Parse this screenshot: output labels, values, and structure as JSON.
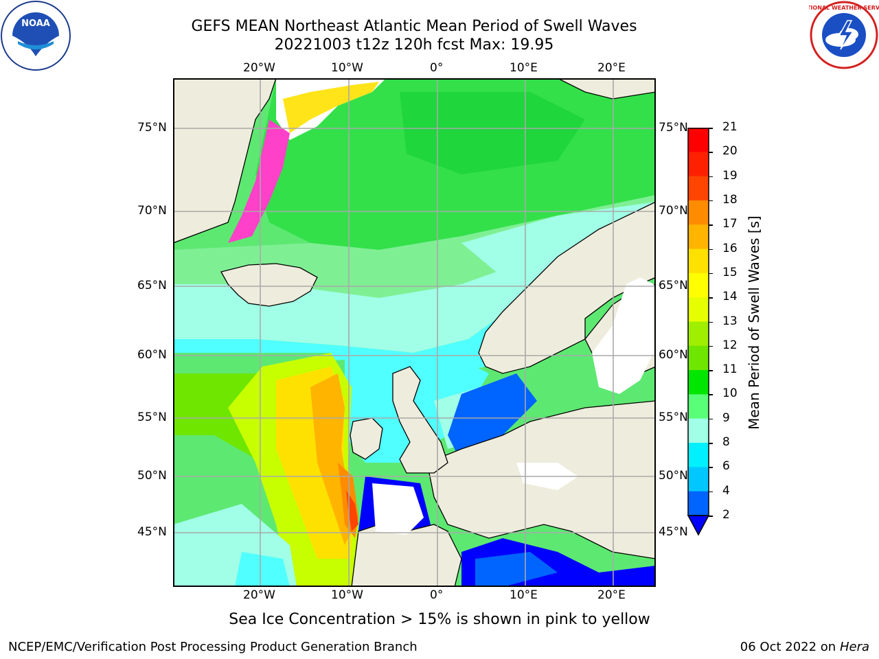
{
  "header": {
    "title_line1": "GEFS MEAN Northeast Atlantic Mean Period of Swell Waves",
    "title_line2": "20221003 t12z 120h fcst   Max: 19.95"
  },
  "logos": {
    "left": {
      "text": "NOAA",
      "ring_text": "NATIONAL OCEANIC AND ATMOSPHERIC ADMINISTRATION · U.S. DEPARTMENT OF COMMERCE"
    },
    "right": {
      "ring_text": "NATIONAL WEATHER SERVICE"
    }
  },
  "map": {
    "lon_labels_top": [
      "20°W",
      "10°W",
      "0°",
      "10°E",
      "20°E"
    ],
    "lon_labels_bottom": [
      "20°W",
      "10°W",
      "0°",
      "10°E",
      "20°E"
    ],
    "lat_labels_left": [
      "75°N",
      "70°N",
      "65°N",
      "60°N",
      "55°N",
      "50°N",
      "45°N"
    ],
    "lat_labels_right": [
      "75°N",
      "70°N",
      "65°N",
      "60°N",
      "55°N",
      "50°N",
      "45°N"
    ],
    "colors": {
      "land": "#eeecdc",
      "ocean_base": "#5de872",
      "ice": "#ff40c8"
    }
  },
  "colorbar": {
    "label": "Mean Period of Swell Waves [s]",
    "ticks": [
      "21",
      "20",
      "19",
      "18",
      "17",
      "16",
      "15",
      "14",
      "13",
      "12",
      "11",
      "10",
      "9",
      "8",
      "6",
      "4",
      "2"
    ],
    "colors_top_to_bottom": [
      "#ff0000",
      "#ff2000",
      "#ff4500",
      "#ff6a00",
      "#ff8c00",
      "#ffb400",
      "#ffe100",
      "#ffff00",
      "#e6ff00",
      "#c8ff00",
      "#a0ee00",
      "#6ee600",
      "#00e600",
      "#5aff78",
      "#a0ffe6",
      "#50ffff",
      "#00f0ff",
      "#00c8ff",
      "#0064ff"
    ],
    "extend_color": "#0000ff"
  },
  "caption": "Sea Ice Concentration > 15% is shown in pink to yellow",
  "footer": {
    "left": "NCEP/EMC/Verification Post Processing Product Generation Branch",
    "right_date": "06 Oct 2022 on ",
    "right_host": "Hera"
  }
}
